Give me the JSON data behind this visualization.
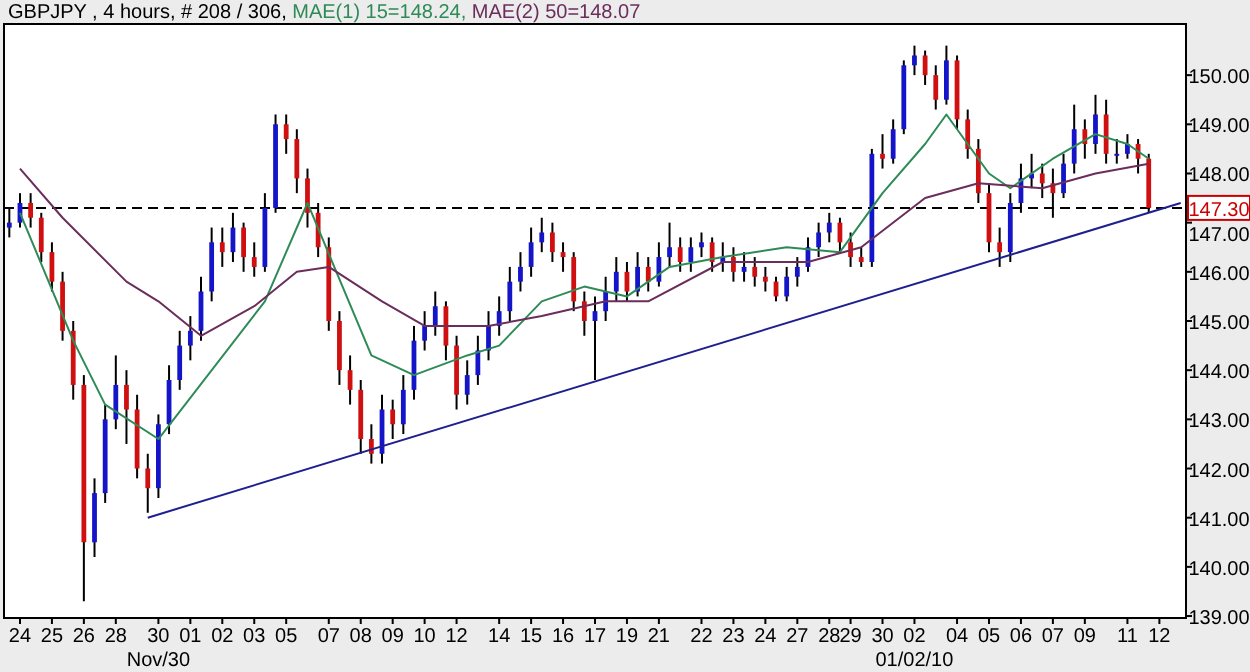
{
  "chart_data": {
    "type": "candlestick",
    "title": "GBPJPY , 4 hours, # 208 / 306,",
    "legend": "top",
    "categories": [
      null,
      "24",
      null,
      null,
      "25",
      null,
      null,
      "26",
      null,
      null,
      "28",
      null,
      null,
      null,
      "30\nNov/30",
      null,
      null,
      "01",
      null,
      null,
      "02",
      null,
      null,
      "03",
      null,
      null,
      "05",
      null,
      null,
      null,
      "07",
      null,
      null,
      "08",
      null,
      null,
      "09",
      null,
      null,
      "10",
      null,
      null,
      "12",
      null,
      null,
      null,
      "14",
      null,
      null,
      "15",
      null,
      null,
      "16",
      null,
      null,
      "17",
      null,
      null,
      "19",
      null,
      null,
      "21",
      null,
      null,
      null,
      "22",
      null,
      null,
      "23",
      null,
      null,
      "24",
      null,
      null,
      "27",
      null,
      null,
      "28",
      null,
      "29",
      null,
      null,
      "30",
      null,
      null,
      "02\n01/02/10",
      null,
      null,
      null,
      "04",
      null,
      null,
      "05",
      null,
      null,
      "06",
      null,
      null,
      "07",
      null,
      null,
      "09",
      null,
      null,
      null,
      "11",
      null,
      null,
      "12",
      null,
      null
    ],
    "ohlc": [
      [
        146.9,
        147.3,
        146.7,
        147.0
      ],
      [
        147.0,
        147.6,
        146.9,
        147.4
      ],
      [
        147.4,
        147.6,
        146.9,
        147.1
      ],
      [
        147.1,
        147.2,
        146.2,
        146.4
      ],
      [
        146.4,
        146.6,
        145.6,
        145.8
      ],
      [
        145.8,
        146.0,
        144.6,
        144.8
      ],
      [
        144.8,
        145.0,
        143.4,
        143.7
      ],
      [
        143.7,
        143.9,
        139.3,
        140.5
      ],
      [
        140.5,
        141.8,
        140.2,
        141.5
      ],
      [
        141.5,
        143.3,
        141.3,
        143.0
      ],
      [
        143.0,
        144.3,
        142.8,
        143.7
      ],
      [
        143.7,
        144.0,
        142.5,
        143.2
      ],
      [
        143.2,
        143.5,
        141.8,
        142.0
      ],
      [
        142.0,
        142.3,
        141.1,
        141.6
      ],
      [
        141.6,
        143.1,
        141.4,
        142.9
      ],
      [
        142.9,
        144.1,
        142.7,
        143.8
      ],
      [
        143.8,
        144.8,
        143.6,
        144.5
      ],
      [
        144.5,
        145.1,
        144.2,
        144.8
      ],
      [
        144.8,
        145.9,
        144.6,
        145.6
      ],
      [
        145.6,
        146.9,
        145.4,
        146.6
      ],
      [
        146.6,
        146.9,
        146.1,
        146.4
      ],
      [
        146.4,
        147.2,
        146.2,
        146.9
      ],
      [
        146.9,
        147.0,
        146.0,
        146.3
      ],
      [
        146.3,
        146.6,
        145.9,
        146.1
      ],
      [
        146.1,
        147.6,
        146.0,
        147.3
      ],
      [
        147.3,
        149.2,
        147.2,
        149.0
      ],
      [
        149.0,
        149.2,
        148.4,
        148.7
      ],
      [
        148.7,
        148.9,
        147.6,
        147.9
      ],
      [
        147.9,
        148.1,
        146.9,
        147.2
      ],
      [
        147.2,
        147.4,
        146.3,
        146.5
      ],
      [
        146.5,
        146.7,
        144.8,
        145.0
      ],
      [
        145.0,
        145.2,
        143.7,
        144.0
      ],
      [
        144.0,
        144.3,
        143.3,
        143.6
      ],
      [
        143.6,
        143.8,
        142.3,
        142.6
      ],
      [
        142.6,
        142.9,
        142.1,
        142.3
      ],
      [
        142.3,
        143.5,
        142.1,
        143.2
      ],
      [
        143.2,
        143.4,
        142.6,
        142.9
      ],
      [
        142.9,
        143.9,
        142.7,
        143.6
      ],
      [
        143.6,
        144.9,
        143.4,
        144.6
      ],
      [
        144.6,
        145.2,
        144.4,
        144.9
      ],
      [
        144.9,
        145.6,
        144.7,
        145.3
      ],
      [
        145.3,
        145.4,
        144.2,
        144.5
      ],
      [
        144.5,
        144.7,
        143.2,
        143.5
      ],
      [
        143.5,
        144.2,
        143.3,
        143.9
      ],
      [
        143.9,
        144.7,
        143.7,
        144.4
      ],
      [
        144.4,
        145.2,
        144.2,
        144.9
      ],
      [
        144.9,
        145.5,
        144.7,
        145.2
      ],
      [
        145.2,
        146.1,
        145.0,
        145.8
      ],
      [
        145.8,
        146.4,
        145.6,
        146.1
      ],
      [
        146.1,
        146.9,
        145.9,
        146.6
      ],
      [
        146.6,
        147.1,
        146.4,
        146.8
      ],
      [
        146.8,
        147.0,
        146.2,
        146.4
      ],
      [
        146.4,
        146.6,
        146.0,
        146.3
      ],
      [
        146.3,
        146.4,
        145.2,
        145.4
      ],
      [
        145.4,
        145.6,
        144.7,
        145.0
      ],
      [
        145.0,
        145.5,
        143.8,
        145.2
      ],
      [
        145.2,
        145.9,
        145.0,
        145.6
      ],
      [
        145.6,
        146.3,
        145.4,
        146.0
      ],
      [
        146.0,
        146.2,
        145.4,
        145.6
      ],
      [
        145.6,
        146.4,
        145.5,
        146.1
      ],
      [
        146.1,
        146.3,
        145.6,
        145.8
      ],
      [
        145.8,
        146.6,
        145.7,
        146.3
      ],
      [
        146.3,
        147.0,
        146.1,
        146.5
      ],
      [
        146.5,
        146.7,
        146.0,
        146.2
      ],
      [
        146.2,
        146.7,
        146.0,
        146.5
      ],
      [
        146.5,
        146.8,
        146.3,
        146.6
      ],
      [
        146.6,
        146.7,
        146.0,
        146.2
      ],
      [
        146.2,
        146.6,
        146.0,
        146.3
      ],
      [
        146.3,
        146.5,
        145.8,
        146.0
      ],
      [
        146.0,
        146.4,
        145.8,
        146.1
      ],
      [
        146.1,
        146.3,
        145.7,
        145.9
      ],
      [
        145.9,
        146.1,
        145.6,
        145.8
      ],
      [
        145.8,
        145.9,
        145.4,
        145.5
      ],
      [
        145.5,
        146.1,
        145.4,
        145.9
      ],
      [
        145.9,
        146.3,
        145.7,
        146.1
      ],
      [
        146.1,
        146.7,
        146.0,
        146.5
      ],
      [
        146.5,
        147.0,
        146.3,
        146.8
      ],
      [
        146.8,
        147.2,
        146.6,
        147.0
      ],
      [
        147.0,
        147.1,
        146.4,
        146.6
      ],
      [
        146.6,
        146.8,
        146.1,
        146.3
      ],
      [
        146.3,
        146.5,
        146.1,
        146.2
      ],
      [
        146.2,
        148.5,
        146.1,
        148.4
      ],
      [
        148.4,
        148.8,
        148.1,
        148.3
      ],
      [
        148.3,
        149.1,
        148.2,
        148.9
      ],
      [
        148.9,
        150.3,
        148.8,
        150.2
      ],
      [
        150.2,
        150.6,
        150.0,
        150.4
      ],
      [
        150.4,
        150.5,
        149.8,
        150.0
      ],
      [
        150.0,
        150.2,
        149.3,
        149.5
      ],
      [
        149.5,
        150.6,
        149.4,
        150.3
      ],
      [
        150.3,
        150.4,
        148.9,
        149.1
      ],
      [
        149.1,
        149.3,
        148.3,
        148.5
      ],
      [
        148.5,
        148.7,
        147.4,
        147.6
      ],
      [
        147.6,
        147.8,
        146.4,
        146.6
      ],
      [
        146.6,
        146.9,
        146.1,
        146.4
      ],
      [
        146.4,
        147.6,
        146.2,
        147.4
      ],
      [
        147.4,
        148.2,
        147.2,
        147.9
      ],
      [
        147.9,
        148.4,
        147.7,
        148.0
      ],
      [
        148.0,
        148.2,
        147.5,
        147.8
      ],
      [
        147.8,
        148.1,
        147.1,
        147.6
      ],
      [
        147.6,
        148.4,
        147.5,
        148.2
      ],
      [
        148.2,
        149.4,
        148.0,
        148.9
      ],
      [
        148.9,
        149.1,
        148.3,
        148.6
      ],
      [
        148.6,
        149.6,
        148.4,
        149.2
      ],
      [
        149.2,
        149.5,
        148.2,
        148.4
      ],
      [
        148.4,
        148.7,
        148.2,
        148.4
      ],
      [
        148.4,
        148.8,
        148.3,
        148.6
      ],
      [
        148.6,
        148.7,
        148.0,
        148.3
      ],
      [
        148.3,
        148.4,
        147.2,
        147.3
      ],
      null,
      null,
      null
    ],
    "series": [
      {
        "type": "line",
        "name": "MAE(1) 15=148.24,",
        "color": "#2e8b57",
        "values": [
          null,
          147.2,
          null,
          null,
          null,
          null,
          144.6,
          null,
          null,
          143.3,
          null,
          null,
          null,
          null,
          142.6,
          null,
          null,
          null,
          null,
          null,
          null,
          null,
          null,
          null,
          145.4,
          null,
          null,
          null,
          147.4,
          null,
          null,
          null,
          null,
          null,
          144.3,
          null,
          null,
          null,
          143.9,
          null,
          null,
          null,
          null,
          144.3,
          null,
          null,
          144.5,
          null,
          null,
          null,
          145.4,
          null,
          null,
          null,
          145.7,
          null,
          null,
          null,
          145.5,
          null,
          null,
          null,
          146.1,
          null,
          null,
          null,
          null,
          146.3,
          null,
          null,
          null,
          null,
          null,
          146.5,
          null,
          null,
          null,
          null,
          146.4,
          null,
          null,
          null,
          147.6,
          null,
          null,
          null,
          148.6,
          null,
          149.2,
          null,
          null,
          null,
          148.0,
          null,
          147.7,
          null,
          null,
          null,
          148.3,
          null,
          null,
          null,
          148.8,
          null,
          null,
          148.6,
          null,
          148.3,
          null,
          null,
          null
        ]
      },
      {
        "type": "line",
        "name": "MAE(2) 50=148.07",
        "color": "#6b2d5c",
        "values": [
          null,
          148.1,
          null,
          null,
          null,
          147.1,
          null,
          null,
          null,
          null,
          null,
          145.8,
          null,
          null,
          145.4,
          null,
          null,
          null,
          144.7,
          null,
          null,
          null,
          null,
          145.3,
          null,
          null,
          null,
          146.0,
          null,
          null,
          146.1,
          null,
          null,
          null,
          null,
          145.4,
          null,
          null,
          null,
          144.9,
          null,
          null,
          null,
          null,
          null,
          144.9,
          null,
          null,
          null,
          null,
          145.1,
          null,
          null,
          null,
          null,
          null,
          145.4,
          null,
          null,
          null,
          145.4,
          null,
          null,
          null,
          null,
          null,
          null,
          146.2,
          null,
          null,
          null,
          null,
          null,
          null,
          null,
          146.2,
          null,
          null,
          null,
          null,
          146.5,
          null,
          null,
          null,
          null,
          null,
          147.5,
          null,
          null,
          null,
          null,
          147.8,
          null,
          null,
          null,
          null,
          null,
          147.7,
          null,
          null,
          null,
          null,
          148.0,
          null,
          null,
          null,
          null,
          148.2,
          null,
          null,
          null
        ]
      },
      {
        "type": "line",
        "color": "#1f1f8f",
        "values": [
          null,
          null,
          null,
          null,
          null,
          null,
          null,
          null,
          null,
          null,
          null,
          null,
          null,
          141.0,
          null,
          null,
          null,
          null,
          null,
          null,
          null,
          null,
          null,
          null,
          null,
          null,
          null,
          null,
          null,
          null,
          null,
          null,
          null,
          null,
          null,
          null,
          null,
          null,
          null,
          null,
          null,
          null,
          null,
          null,
          null,
          null,
          null,
          null,
          null,
          null,
          null,
          null,
          null,
          null,
          null,
          null,
          null,
          null,
          null,
          null,
          null,
          null,
          null,
          null,
          null,
          null,
          null,
          null,
          null,
          null,
          null,
          null,
          null,
          null,
          null,
          null,
          null,
          null,
          null,
          null,
          null,
          null,
          null,
          null,
          null,
          null,
          null,
          null,
          null,
          null,
          null,
          null,
          null,
          null,
          null,
          null,
          null,
          null,
          null,
          null,
          null,
          null,
          null,
          null,
          null,
          null,
          null,
          null,
          null,
          null,
          147.4
        ]
      }
    ],
    "ref_lines": [
      {
        "axis": "y",
        "value": 147.3,
        "label": "147.30",
        "line_style": "dashed"
      }
    ],
    "ylim": [
      138.96,
      151.04
    ],
    "yticks": [
      {
        "value": 139,
        "label": "139.00"
      },
      {
        "value": 140,
        "label": "140.00"
      },
      {
        "value": 141,
        "label": "141.00"
      },
      {
        "value": 142,
        "label": "142.00"
      },
      {
        "value": 143,
        "label": "143.00"
      },
      {
        "value": 144,
        "label": "144.00"
      },
      {
        "value": 145,
        "label": "145.00"
      },
      {
        "value": 146,
        "label": "146.00"
      },
      {
        "value": 147,
        "label": "147.00"
      },
      {
        "value": 148,
        "label": "148.00"
      },
      {
        "value": 149,
        "label": "149.00"
      },
      {
        "value": 150,
        "label": "150.00"
      }
    ]
  }
}
